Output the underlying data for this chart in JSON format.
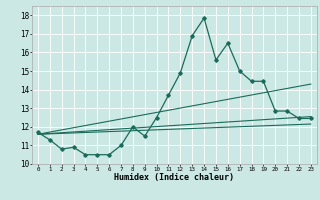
{
  "xlabel": "Humidex (Indice chaleur)",
  "ylabel": "",
  "bg_color": "#cce8e4",
  "grid_color": "#ffffff",
  "line_color": "#1a6b5a",
  "xlim": [
    -0.5,
    23.5
  ],
  "ylim": [
    10,
    18.5
  ],
  "yticks": [
    10,
    11,
    12,
    13,
    14,
    15,
    16,
    17,
    18
  ],
  "xticks": [
    0,
    1,
    2,
    3,
    4,
    5,
    6,
    7,
    8,
    9,
    10,
    11,
    12,
    13,
    14,
    15,
    16,
    17,
    18,
    19,
    20,
    21,
    22,
    23
  ],
  "line1_x": [
    0,
    1,
    2,
    3,
    4,
    5,
    6,
    7,
    8,
    9,
    10,
    11,
    12,
    13,
    14,
    15,
    16,
    17,
    18,
    19,
    20,
    21,
    22,
    23
  ],
  "line1_y": [
    11.7,
    11.3,
    10.8,
    10.9,
    10.5,
    10.5,
    10.5,
    11.0,
    12.0,
    11.5,
    12.5,
    13.7,
    14.9,
    16.9,
    17.85,
    15.6,
    16.5,
    15.0,
    14.45,
    14.45,
    12.85,
    12.85,
    12.45,
    12.45
  ],
  "line2_x": [
    0,
    23
  ],
  "line2_y": [
    11.6,
    14.3
  ],
  "line3_x": [
    0,
    23
  ],
  "line3_y": [
    11.6,
    12.55
  ],
  "line4_x": [
    0,
    23
  ],
  "line4_y": [
    11.6,
    12.15
  ]
}
